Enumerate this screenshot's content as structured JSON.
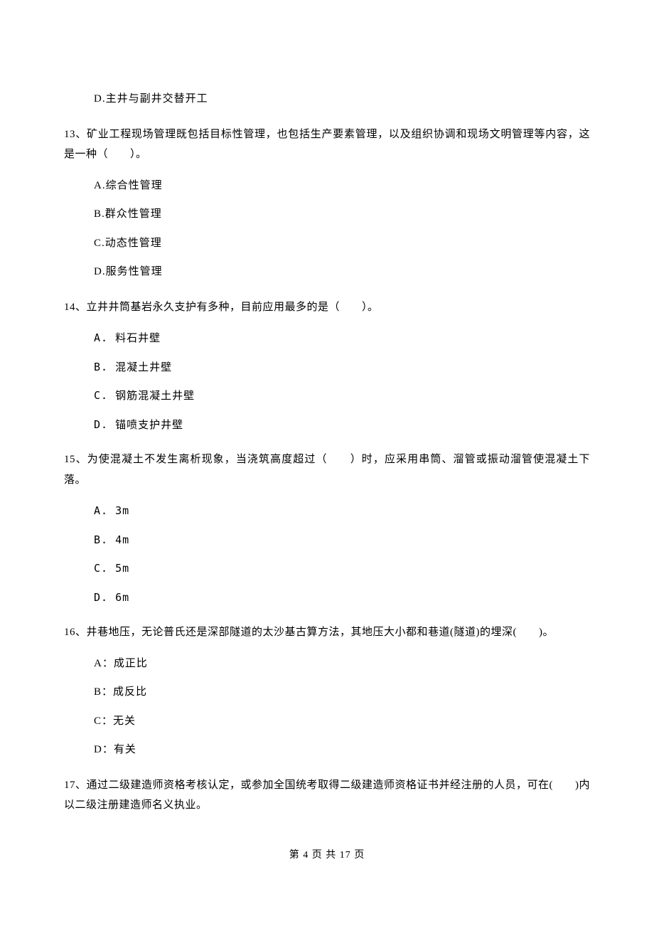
{
  "q12": {
    "optD": "D.主井与副井交替开工"
  },
  "q13": {
    "text": "13、矿业工程现场管理既包括目标性管理，也包括生产要素管理，以及组织协调和现场文明管理等内容，这是一种（　　）。",
    "optA": "A.综合性管理",
    "optB": "B.群众性管理",
    "optC": "C.动态性管理",
    "optD": "D.服务性管理"
  },
  "q14": {
    "text": "14、立井井筒基岩永久支护有多种，目前应用最多的是（　　）。",
    "optA": "A. 料石井壁",
    "optB": "B. 混凝土井壁",
    "optC": "C. 钢筋混凝土井壁",
    "optD": "D. 锚喷支护井壁"
  },
  "q15": {
    "text": "15、为使混凝土不发生离析现象，当浇筑高度超过（　　）时，应采用串筒、溜管或振动溜管使混凝土下落。",
    "optA": "A. 3m",
    "optB": "B. 4m",
    "optC": "C. 5m",
    "optD": "D. 6m"
  },
  "q16": {
    "text": "16、井巷地压，无论普氏还是深部隧道的太沙基古算方法，其地压大小都和巷道(隧道)的埋深(　　)。",
    "optA": "A：成正比",
    "optB": "B：成反比",
    "optC": "C：无关",
    "optD": "D：有关"
  },
  "q17": {
    "text": "17、通过二级建造师资格考核认定，或参加全国统考取得二级建造师资格证书并经注册的人员，可在(　　)内以二级注册建造师名义执业。"
  },
  "footer": "第 4 页 共 17 页"
}
